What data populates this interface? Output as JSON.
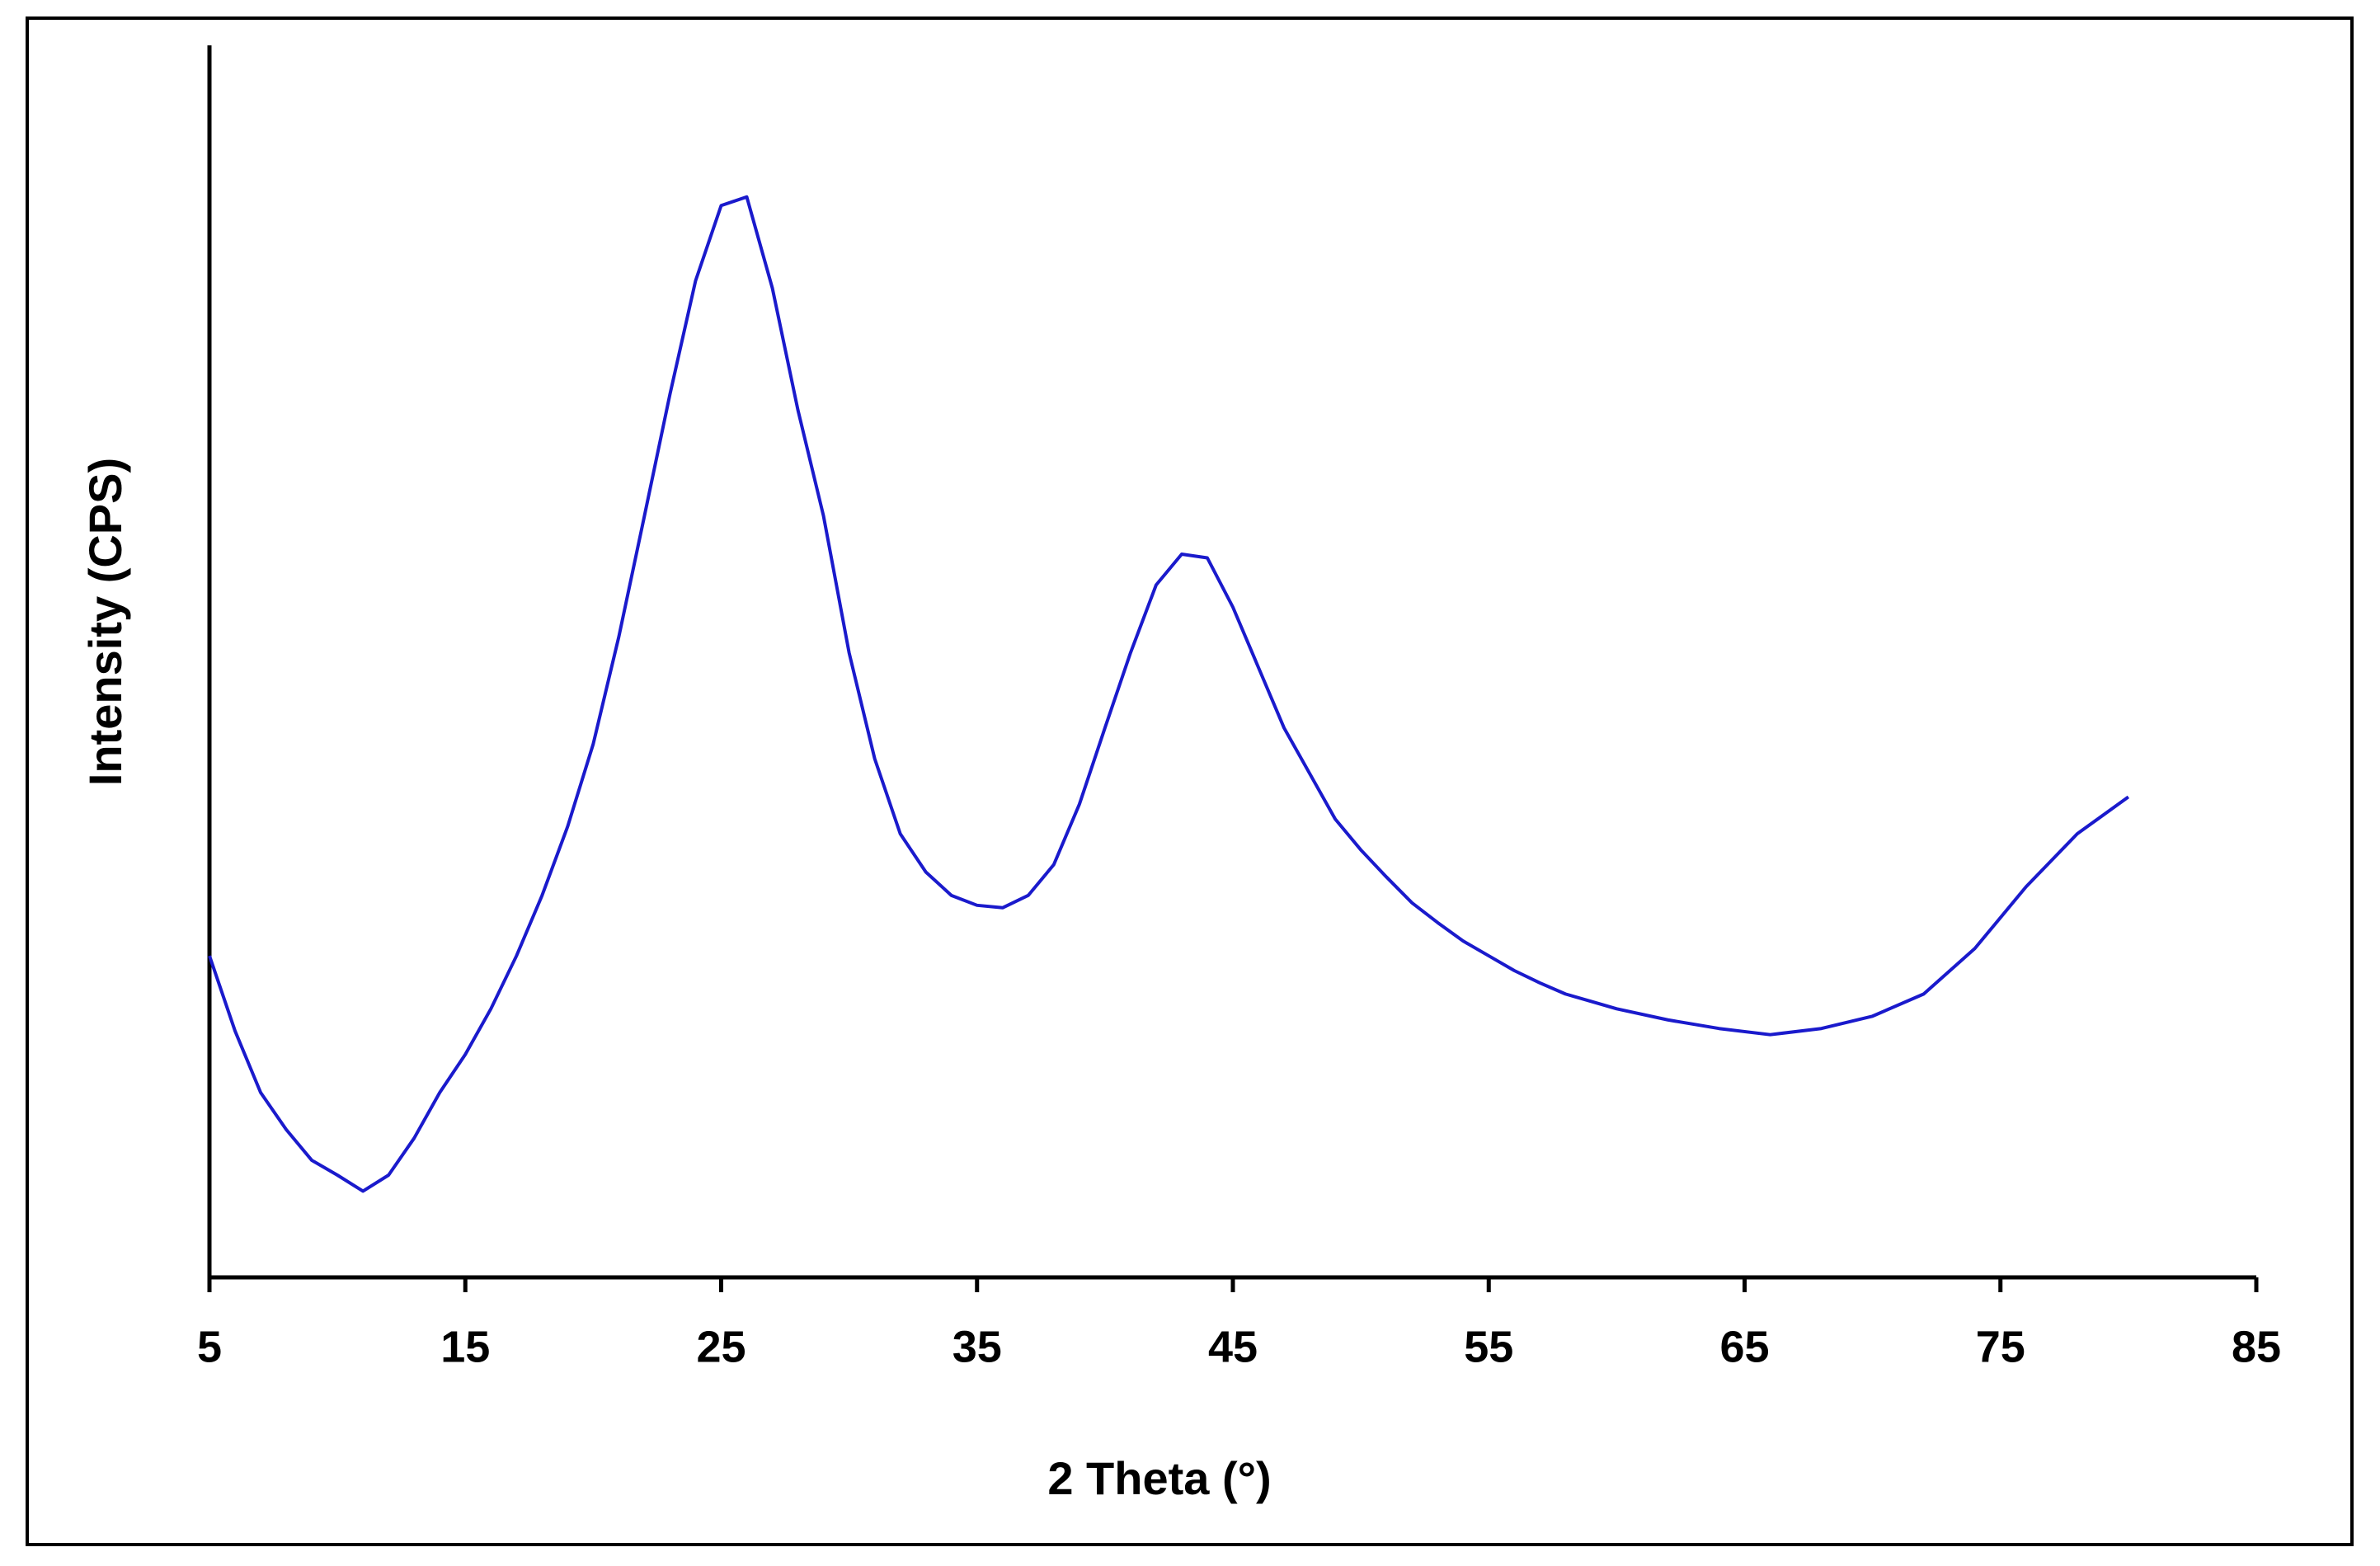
{
  "chart_data": {
    "type": "line",
    "xlabel": "2 Theta (°)",
    "ylabel": "Intensity (CPS)",
    "xlim": [
      5,
      85
    ],
    "xticks": [
      5,
      15,
      25,
      35,
      45,
      55,
      65,
      75,
      85
    ],
    "ylim": [
      0,
      100
    ],
    "series": [
      {
        "color": "#1a1acc",
        "x": [
          5,
          6,
          7,
          8,
          9,
          10,
          11,
          12,
          13,
          14,
          15,
          16,
          17,
          18,
          19,
          20,
          21,
          22,
          23,
          24,
          25,
          26,
          27,
          28,
          29,
          30,
          31,
          32,
          33,
          34,
          35,
          36,
          37,
          38,
          39,
          40,
          41,
          42,
          43,
          44,
          45,
          46,
          47,
          48,
          49,
          50,
          51,
          52,
          53,
          54,
          55,
          56,
          57,
          58,
          59,
          60,
          62,
          64,
          66,
          68,
          70,
          72,
          74,
          76,
          78,
          80
        ],
        "values": [
          26.1,
          20,
          15,
          12,
          9.5,
          8.3,
          7,
          8.3,
          11.3,
          15,
          18.1,
          21.8,
          26.1,
          31,
          36.6,
          43.3,
          52,
          61.8,
          71.7,
          80.9,
          87,
          87.7,
          80.3,
          70.4,
          61.8,
          50.7,
          42.1,
          36,
          32.9,
          31,
          30.2,
          30,
          31,
          33.5,
          38.4,
          44.6,
          50.7,
          56.2,
          58.7,
          58.4,
          54.4,
          49.5,
          44.6,
          40.9,
          37.2,
          34.7,
          32.5,
          30.4,
          28.8,
          27.3,
          26.1,
          24.9,
          23.9,
          23,
          22.4,
          21.8,
          20.9,
          20.2,
          19.7,
          20.2,
          21.2,
          23,
          26.7,
          31.7,
          36,
          39
        ]
      }
    ]
  }
}
